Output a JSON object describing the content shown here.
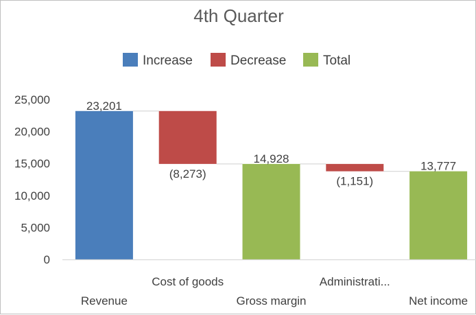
{
  "chart_data": {
    "type": "bar",
    "subtype": "waterfall",
    "title": "4th Quarter",
    "xlabel": "",
    "ylabel": "",
    "ylim": [
      0,
      25000
    ],
    "y_ticks": [
      "0",
      "5,000",
      "10,000",
      "15,000",
      "20,000",
      "25,000"
    ],
    "legend_position": "top",
    "grid": false,
    "categories": [
      "Revenue",
      "Cost of goods",
      "Gross margin",
      "Administrati...",
      "Net income"
    ],
    "values": [
      23201,
      -8273,
      14928,
      -1151,
      13777
    ],
    "bar_kind": [
      "increase",
      "decrease",
      "total",
      "decrease",
      "total"
    ],
    "data_labels": [
      "23,201",
      "(8,273)",
      "14,928",
      "(1,151)",
      "13,777"
    ],
    "legend": [
      {
        "key": "increase",
        "label": "Increase",
        "color": "#4a7ebb"
      },
      {
        "key": "decrease",
        "label": "Decrease",
        "color": "#be4b48"
      },
      {
        "key": "total",
        "label": "Total",
        "color": "#98b954"
      }
    ]
  }
}
